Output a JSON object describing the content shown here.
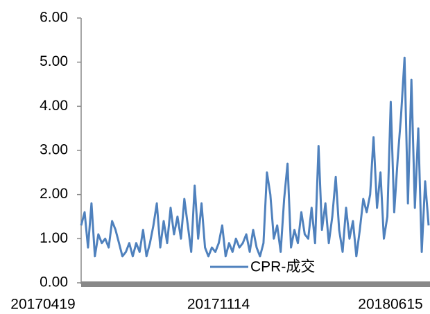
{
  "chart_data": {
    "type": "line",
    "legend": "CPR-成交",
    "categories": [
      "20170419",
      null,
      null,
      null,
      null,
      null,
      null,
      null,
      null,
      null,
      null,
      null,
      null,
      null,
      null,
      null,
      null,
      null,
      null,
      null,
      null,
      null,
      null,
      null,
      null,
      null,
      null,
      null,
      null,
      null,
      null,
      null,
      null,
      null,
      null,
      null,
      null,
      null,
      null,
      null,
      null,
      null,
      null,
      null,
      null,
      null,
      null,
      null,
      null,
      null,
      null,
      "20171114",
      null,
      null,
      null,
      null,
      null,
      null,
      null,
      null,
      null,
      null,
      null,
      null,
      null,
      null,
      null,
      null,
      null,
      null,
      null,
      null,
      null,
      null,
      null,
      null,
      null,
      null,
      null,
      null,
      null,
      null,
      null,
      null,
      null,
      null,
      null,
      null,
      null,
      null,
      null,
      null,
      null,
      null,
      null,
      null,
      null,
      null,
      null,
      null,
      null,
      "20180615"
    ],
    "series": [
      {
        "name": "CPR-成交",
        "color": "#4f81bd",
        "values": [
          1.3,
          1.6,
          0.8,
          1.8,
          0.6,
          1.1,
          0.9,
          1.0,
          0.8,
          1.4,
          1.2,
          0.9,
          0.6,
          0.7,
          0.9,
          0.6,
          0.9,
          0.7,
          1.2,
          0.6,
          0.9,
          1.3,
          1.8,
          0.8,
          1.4,
          0.9,
          1.7,
          1.1,
          1.5,
          1.0,
          1.9,
          1.3,
          0.7,
          2.2,
          1.0,
          1.8,
          0.8,
          0.6,
          0.8,
          0.7,
          0.9,
          1.3,
          0.6,
          0.9,
          0.7,
          1.0,
          0.8,
          0.9,
          1.1,
          0.7,
          1.2,
          0.8,
          0.6,
          0.9,
          2.5,
          2.0,
          1.0,
          1.3,
          0.7,
          1.9,
          2.7,
          0.8,
          1.2,
          0.9,
          1.6,
          1.1,
          1.0,
          1.7,
          0.9,
          3.1,
          1.2,
          1.8,
          0.9,
          1.5,
          2.4,
          1.2,
          0.7,
          1.7,
          1.0,
          1.4,
          0.6,
          1.2,
          1.9,
          1.6,
          2.0,
          3.3,
          1.7,
          2.5,
          1.0,
          1.5,
          4.1,
          1.6,
          2.8,
          3.8,
          5.1,
          1.8,
          4.6,
          1.7,
          3.5,
          0.7,
          2.3,
          1.3
        ]
      }
    ],
    "ylim": [
      0,
      6
    ],
    "yticks": [
      {
        "value": 0,
        "label": "0.00"
      },
      {
        "value": 1,
        "label": "1.00"
      },
      {
        "value": 2,
        "label": "2.00"
      },
      {
        "value": 3,
        "label": "3.00"
      },
      {
        "value": 4,
        "label": "4.00"
      },
      {
        "value": 5,
        "label": "5.00"
      },
      {
        "value": 6,
        "label": "6.00"
      }
    ]
  }
}
